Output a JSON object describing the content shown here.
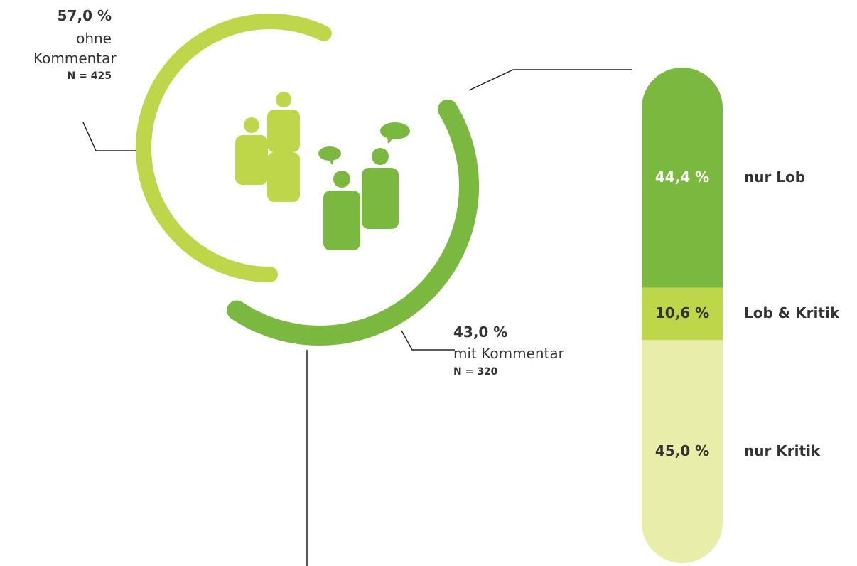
{
  "chart_data": [
    {
      "type": "ring",
      "categories": [
        "ohne Kommentar",
        "mit Kommentar"
      ],
      "values": [
        57.0,
        43.0
      ],
      "value_labels": [
        "57,0 %",
        "43,0 %"
      ],
      "annotations": [
        "N = 425",
        "N = 320"
      ],
      "colors": [
        "#bed64a",
        "#7ab840"
      ]
    },
    {
      "type": "stacked-bar",
      "categories": [
        "nur Lob",
        "Lob & Kritik",
        "nur Kritik"
      ],
      "values": [
        44.4,
        10.6,
        45.0
      ],
      "value_labels": [
        "44,4 %",
        "10,6 %",
        "45,0 %"
      ],
      "colors": [
        "#7ab840",
        "#bed64a",
        "#e8eeaa"
      ]
    }
  ]
}
